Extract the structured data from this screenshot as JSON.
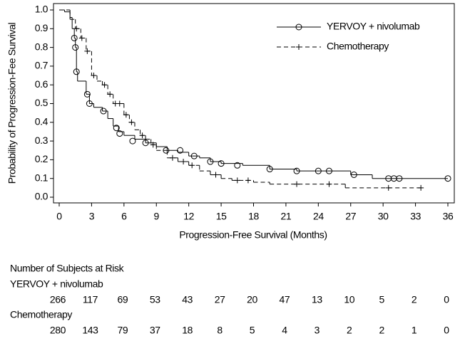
{
  "chart_data": {
    "type": "step",
    "xlabel": "Progression-Free Survival (Months)",
    "ylabel": "Probability of Progression-Fee Survival",
    "xlim": [
      0,
      36
    ],
    "ylim": [
      0,
      1
    ],
    "xticks": [
      0,
      3,
      6,
      9,
      12,
      15,
      18,
      21,
      24,
      27,
      30,
      33,
      36
    ],
    "yticks": [
      {
        "value": 0,
        "label": "0.0"
      },
      0.1,
      0.2,
      0.3,
      0.4,
      0.5,
      0.6,
      0.7,
      0.8,
      0.9,
      {
        "value": 1,
        "label": "1.0"
      }
    ],
    "legend": "upper right",
    "series": [
      {
        "name": "YERVOY + nivolumab",
        "color": "#000000",
        "line_style": "solid",
        "marker": "circle",
        "x": [
          0,
          0.5,
          1,
          1.2,
          1.4,
          1.5,
          1.6,
          1.7,
          2.5,
          2.8,
          3.2,
          4,
          4.5,
          5,
          5.5,
          6,
          7,
          8,
          9,
          10,
          11,
          12,
          13,
          14,
          15,
          17,
          19.5,
          22,
          27,
          29,
          36
        ],
        "values": [
          1,
          0.99,
          0.96,
          0.9,
          0.85,
          0.8,
          0.67,
          0.62,
          0.55,
          0.5,
          0.48,
          0.46,
          0.42,
          0.38,
          0.35,
          0.33,
          0.31,
          0.29,
          0.27,
          0.25,
          0.24,
          0.22,
          0.21,
          0.19,
          0.18,
          0.17,
          0.15,
          0.14,
          0.12,
          0.1,
          0.1
        ],
        "censored_x": [
          1.4,
          1.5,
          1.6,
          2.6,
          2.8,
          4.1,
          5.3,
          5.6,
          6.8,
          8,
          9.9,
          11.2,
          12.5,
          14,
          15,
          16.5,
          19.5,
          22,
          24,
          25,
          27.3,
          30.5,
          31,
          31.5,
          36
        ],
        "censored_values": [
          0.85,
          0.8,
          0.67,
          0.55,
          0.5,
          0.46,
          0.37,
          0.34,
          0.3,
          0.29,
          0.25,
          0.25,
          0.22,
          0.19,
          0.18,
          0.17,
          0.15,
          0.14,
          0.14,
          0.14,
          0.12,
          0.1,
          0.1,
          0.1,
          0.1
        ]
      },
      {
        "name": "Chemotherapy",
        "color": "#000000",
        "line_style": "dashed",
        "marker": "plus",
        "x": [
          0,
          1,
          1.5,
          2,
          2.5,
          3,
          3.5,
          4,
          4.5,
          5,
          6,
          6.5,
          7,
          7.5,
          8,
          8.5,
          9,
          10,
          11,
          12,
          13,
          14,
          15,
          16,
          18,
          19.5,
          26.5,
          33.5
        ],
        "values": [
          1,
          0.95,
          0.9,
          0.85,
          0.78,
          0.65,
          0.62,
          0.6,
          0.55,
          0.5,
          0.44,
          0.4,
          0.36,
          0.33,
          0.31,
          0.28,
          0.25,
          0.21,
          0.19,
          0.17,
          0.14,
          0.12,
          0.1,
          0.09,
          0.08,
          0.07,
          0.05,
          0.05
        ],
        "censored_x": [
          1.6,
          2.1,
          2.6,
          3.2,
          4.2,
          4.7,
          5.2,
          5.6,
          6.2,
          6.7,
          7.7,
          8.7,
          10.5,
          11.5,
          12.3,
          14.5,
          16.5,
          17.5,
          22,
          25,
          30.5,
          33.5
        ],
        "censored_values": [
          0.9,
          0.85,
          0.78,
          0.65,
          0.6,
          0.55,
          0.5,
          0.5,
          0.44,
          0.4,
          0.33,
          0.28,
          0.21,
          0.19,
          0.17,
          0.12,
          0.09,
          0.09,
          0.07,
          0.07,
          0.05,
          0.05
        ]
      }
    ]
  },
  "risk_table": {
    "title": "Number of Subjects at Risk",
    "counts": [
      [
        "266",
        "117",
        "69",
        "53",
        "43",
        "27",
        "20",
        "47",
        "13",
        "10",
        "5",
        "2",
        "0"
      ],
      [
        "280",
        "143",
        "79",
        "37",
        "18",
        "8",
        "5",
        "4",
        "3",
        "2",
        "2",
        "1",
        "0"
      ]
    ]
  }
}
